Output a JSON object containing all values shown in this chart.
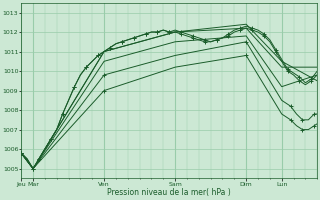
{
  "xlabel": "Pression niveau de la mer( hPa )",
  "bg_color": "#cce8d4",
  "grid_color": "#99ccaa",
  "line_color": "#1a5c2a",
  "ylim": [
    1004.5,
    1013.5
  ],
  "yticks": [
    1005,
    1006,
    1007,
    1008,
    1009,
    1010,
    1011,
    1012,
    1013
  ],
  "day_labels": [
    "Jeu",
    "Mar",
    "Ven",
    "Sam",
    "Dim",
    "Lun"
  ],
  "day_positions": [
    0,
    8,
    56,
    104,
    152,
    176
  ],
  "total_hours": 200,
  "lines": [
    {
      "x": [
        0,
        4,
        8,
        10,
        12,
        16,
        20,
        24,
        28,
        32,
        36,
        40,
        44,
        48,
        52,
        56,
        60,
        64,
        68,
        72,
        76,
        80,
        84,
        88,
        92,
        96,
        100,
        104,
        108,
        112,
        116,
        120,
        124,
        128,
        132,
        136,
        140,
        144,
        148,
        152,
        156,
        160,
        164,
        168,
        172,
        176,
        180,
        184,
        188,
        192,
        196,
        200
      ],
      "y": [
        1005.8,
        1005.5,
        1005.0,
        1005.2,
        1005.5,
        1006.0,
        1006.5,
        1007.0,
        1007.8,
        1008.5,
        1009.2,
        1009.8,
        1010.2,
        1010.5,
        1010.8,
        1011.0,
        1011.2,
        1011.4,
        1011.5,
        1011.6,
        1011.7,
        1011.8,
        1011.9,
        1012.0,
        1012.0,
        1012.1,
        1012.0,
        1012.0,
        1011.9,
        1011.8,
        1011.7,
        1011.6,
        1011.5,
        1011.5,
        1011.6,
        1011.7,
        1011.8,
        1012.0,
        1012.1,
        1012.2,
        1012.1,
        1012.0,
        1011.8,
        1011.5,
        1011.0,
        1010.5,
        1010.0,
        1009.8,
        1009.5,
        1009.3,
        1009.5,
        1009.8
      ],
      "marker": true
    },
    {
      "x": [
        0,
        4,
        8,
        10,
        12,
        16,
        20,
        24,
        28,
        32,
        36,
        40,
        44,
        48,
        52,
        56,
        60,
        64,
        68,
        72,
        76,
        80,
        84,
        88,
        92,
        96,
        100,
        104,
        108,
        112,
        116,
        120,
        124,
        128,
        132,
        136,
        140,
        144,
        148,
        152,
        156,
        160,
        164,
        168,
        172,
        176,
        180,
        184,
        188,
        192,
        196,
        200
      ],
      "y": [
        1005.8,
        1005.5,
        1005.0,
        1005.2,
        1005.5,
        1006.0,
        1006.5,
        1007.0,
        1007.8,
        1008.5,
        1009.2,
        1009.8,
        1010.2,
        1010.5,
        1010.8,
        1011.0,
        1011.2,
        1011.4,
        1011.5,
        1011.6,
        1011.7,
        1011.8,
        1011.9,
        1012.0,
        1012.0,
        1012.1,
        1012.0,
        1012.1,
        1012.0,
        1011.9,
        1011.8,
        1011.7,
        1011.6,
        1011.5,
        1011.6,
        1011.7,
        1011.9,
        1012.1,
        1012.2,
        1012.3,
        1012.2,
        1012.1,
        1011.9,
        1011.6,
        1011.1,
        1010.6,
        1010.1,
        1009.9,
        1009.7,
        1009.4,
        1009.6,
        1010.0
      ],
      "marker": true
    },
    {
      "x": [
        0,
        8,
        56,
        104,
        152,
        176,
        200
      ],
      "y": [
        1005.8,
        1005.0,
        1011.0,
        1012.0,
        1012.2,
        1010.2,
        1010.2
      ],
      "marker": false
    },
    {
      "x": [
        0,
        8,
        56,
        104,
        152,
        176,
        200
      ],
      "y": [
        1005.8,
        1005.0,
        1011.0,
        1012.0,
        1012.4,
        1010.5,
        1009.5
      ],
      "marker": false
    },
    {
      "x": [
        0,
        8,
        56,
        104,
        152,
        176,
        200
      ],
      "y": [
        1005.8,
        1005.0,
        1010.5,
        1011.5,
        1011.8,
        1009.2,
        1009.8
      ],
      "marker": false
    },
    {
      "x": [
        0,
        8,
        56,
        104,
        152,
        176,
        182,
        186,
        190,
        194,
        198,
        200
      ],
      "y": [
        1005.8,
        1005.0,
        1009.8,
        1010.8,
        1011.5,
        1008.5,
        1008.2,
        1007.8,
        1007.5,
        1007.5,
        1007.8,
        1007.8
      ],
      "marker": true
    },
    {
      "x": [
        0,
        8,
        56,
        104,
        152,
        176,
        182,
        186,
        190,
        194,
        198,
        200
      ],
      "y": [
        1005.8,
        1005.0,
        1009.0,
        1010.2,
        1010.8,
        1007.8,
        1007.5,
        1007.2,
        1007.0,
        1007.0,
        1007.2,
        1007.3
      ],
      "marker": true
    }
  ]
}
